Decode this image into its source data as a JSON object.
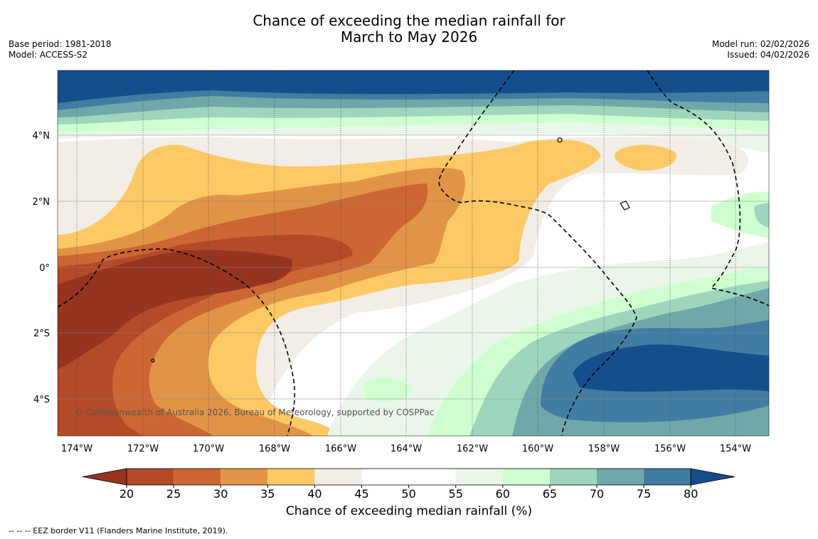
{
  "title": {
    "line1": "Chance of exceeding the median rainfall for",
    "line2": "March to May 2026"
  },
  "meta": {
    "base_period": "Base period: 1981-2018",
    "model": "Model: ACCESS-S2",
    "model_run": "Model run: 02/02/2026",
    "issued": "Issued: 04/02/2026"
  },
  "map": {
    "lon_labels": [
      "174°W",
      "172°W",
      "170°W",
      "168°W",
      "166°W",
      "164°W",
      "162°W",
      "160°W",
      "158°W",
      "156°W",
      "154°W"
    ],
    "lat_labels": [
      "4°N",
      "2°N",
      "0°",
      "2°S",
      "4°S"
    ],
    "copyright": "© Commonwealth of Australia 2026, Bureau of Meteorology, supported by COSPPac",
    "colors": {
      "c15": "#963420",
      "c20": "#b54a28",
      "c25": "#cc6633",
      "c30": "#e29446",
      "c35": "#fdc964",
      "c40": "#f2ede7",
      "c45": "#ffffff",
      "c50": "#ffffff",
      "c55": "#eaf6ea",
      "c60": "#cfffd1",
      "c65": "#9ed6bd",
      "c70": "#70a8a9",
      "c75": "#417da2",
      "c80": "#154e8c"
    }
  },
  "colorbar": {
    "ticks": [
      "20",
      "25",
      "30",
      "35",
      "40",
      "45",
      "50",
      "55",
      "60",
      "65",
      "70",
      "75",
      "80"
    ],
    "colors": [
      "#963420",
      "#b54a28",
      "#cc6633",
      "#e29446",
      "#fdc964",
      "#f2ede7",
      "#ffffff",
      "#ffffff",
      "#eaf6ea",
      "#cfffd1",
      "#9ed6bd",
      "#70a8a9",
      "#417da2",
      "#154e8c"
    ],
    "label": "Chance of exceeding median rainfall (%)"
  },
  "footnote": "--  --  -- EEZ border V11 (Flanders Marine Institute, 2019)."
}
